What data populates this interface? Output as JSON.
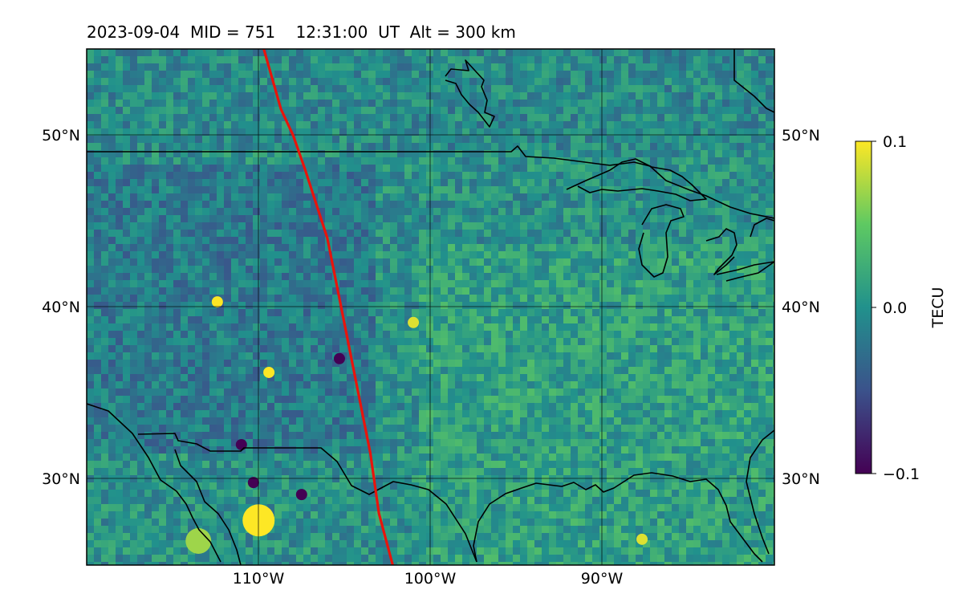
{
  "title": "2023-09-04  MID = 751    12:31:00  UT  Alt = 300 km",
  "axes": {
    "lat_labels": [
      "50°N",
      "40°N",
      "30°N"
    ],
    "lon_labels": [
      "110°W",
      "100°W",
      "90°W"
    ]
  },
  "colorbar": {
    "label": "TECU",
    "tick_labels": [
      "0.1",
      "0.0",
      "−0.1"
    ],
    "min": -0.1,
    "max": 0.1,
    "colormap": [
      "#440154",
      "#3b528b",
      "#21918c",
      "#5ec962",
      "#fde725"
    ]
  },
  "chart_data": {
    "type": "heatmap",
    "title": "2023-09-04  MID = 751    12:31:00  UT  Alt = 300 km",
    "lon_range": [
      -120,
      -80
    ],
    "lat_range": [
      25,
      55
    ],
    "colorbar_label": "TECU",
    "value_range": [
      -0.1,
      0.1
    ],
    "gridlines": true,
    "overlay_track": {
      "color": "#e8140c",
      "points": [
        [
          -109.7,
          55
        ],
        [
          -108.7,
          51.5
        ],
        [
          -108.0,
          50
        ],
        [
          -107.3,
          48
        ],
        [
          -106.0,
          44
        ],
        [
          -105.2,
          40
        ],
        [
          -104.4,
          36
        ],
        [
          -103.5,
          31.5
        ],
        [
          -103.0,
          28
        ],
        [
          -102.2,
          25
        ]
      ]
    },
    "anomalies": [
      {
        "lon": -110.0,
        "lat": 27.6,
        "value": 0.1
      },
      {
        "lon": -113.5,
        "lat": 26.4,
        "value": 0.07
      },
      {
        "lon": -112.4,
        "lat": 40.3,
        "value": 0.1
      },
      {
        "lon": -109.4,
        "lat": 36.2,
        "value": 0.1
      },
      {
        "lon": -101.0,
        "lat": 39.1,
        "value": 0.09
      },
      {
        "lon": -110.3,
        "lat": 29.8,
        "value": -0.1
      },
      {
        "lon": -107.5,
        "lat": 29.1,
        "value": -0.1
      },
      {
        "lon": -111.0,
        "lat": 32.0,
        "value": -0.1
      },
      {
        "lon": -105.3,
        "lat": 37.0,
        "value": -0.1
      },
      {
        "lon": -87.7,
        "lat": 26.5,
        "value": 0.09
      }
    ]
  }
}
